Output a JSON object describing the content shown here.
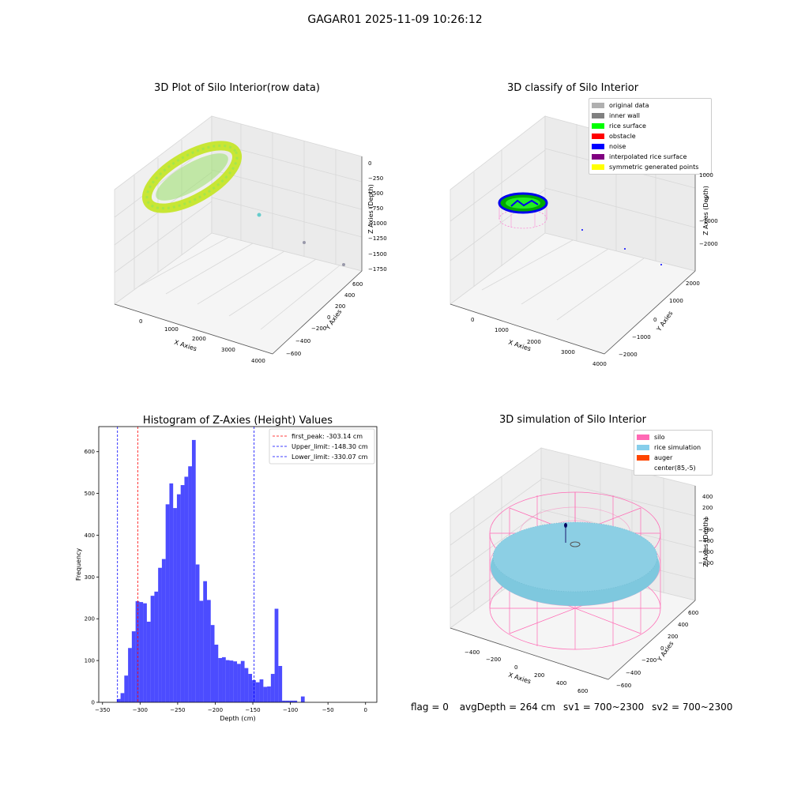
{
  "figure_title": "GAGAR01 2025-11-09 10:26:12",
  "panels": {
    "raw": {
      "title": "3D Plot of Silo Interior(row data)",
      "xlabel": "X Axies",
      "ylabel": "Y Axies",
      "zlabel": "Z Axies (Depth)",
      "xticks": [
        "0",
        "1000",
        "2000",
        "3000",
        "4000"
      ],
      "yticks": [
        "600",
        "400",
        "200",
        "0",
        "−200",
        "−400",
        "−600"
      ],
      "zticks": [
        "0",
        "−250",
        "−500",
        "−750",
        "−1000",
        "−1250",
        "−1500",
        "−1750"
      ]
    },
    "classify": {
      "title": "3D classify of Silo Interior",
      "xlabel": "X Axies",
      "ylabel": "Y Axies",
      "zlabel": "Z Axies (Depth)",
      "xticks": [
        "0",
        "1000",
        "2000",
        "3000",
        "4000"
      ],
      "yticks": [
        "2000",
        "1000",
        "0",
        "−1000",
        "−2000"
      ],
      "zticks": [
        "1000",
        "0",
        "−1000",
        "−2000"
      ],
      "legend": [
        {
          "label": "original data",
          "color": "#b0b0b0"
        },
        {
          "label": "inner wall",
          "color": "#808080"
        },
        {
          "label": "rice surface",
          "color": "#00ff00"
        },
        {
          "label": "obstacle",
          "color": "#ff0000"
        },
        {
          "label": "noise",
          "color": "#0000ff"
        },
        {
          "label": "interpolated rice surface",
          "color": "#800080"
        },
        {
          "label": "symmetric generated points",
          "color": "#ffff00"
        }
      ]
    },
    "simulation": {
      "title": "3D simulation of Silo Interior",
      "xlabel": "X Axies",
      "ylabel": "Y Axies",
      "zlabel": "Z Axies (Depth)",
      "xticks": [
        "−400",
        "−200",
        "0",
        "200",
        "400",
        "600"
      ],
      "yticks": [
        "600",
        "400",
        "200",
        "0",
        "−200",
        "−400",
        "−600"
      ],
      "zticks": [
        "400",
        "200",
        "0",
        "−200",
        "−400",
        "−600",
        "−800"
      ],
      "legend": [
        {
          "label": "silo",
          "color": "#ff69b4"
        },
        {
          "label": "rice simulation",
          "color": "#87ceeb"
        },
        {
          "label": "auger",
          "color": "#ff4500"
        },
        {
          "label": "center(85,-5)",
          "color": ""
        }
      ]
    }
  },
  "footer": {
    "flag": "flag = 0",
    "avg": "avgDepth = 264 cm",
    "sv1": "sv1 = 700~2300",
    "sv2": "sv2 = 700~2300"
  },
  "chart_data": [
    {
      "type": "bar",
      "title": "Histogram of Z-Axies (Height) Values",
      "xlabel": "Depth (cm)",
      "ylabel": "Frequency",
      "xlim": [
        -350,
        0
      ],
      "ylim": [
        0,
        660
      ],
      "xticks": [
        -350,
        -300,
        -250,
        -200,
        -150,
        -100,
        -50,
        0
      ],
      "yticks": [
        0,
        100,
        200,
        300,
        400,
        500,
        600
      ],
      "bar_color": "#0000ff",
      "bins": [
        {
          "x0": -336,
          "x1": -331,
          "value": 8
        },
        {
          "x0": -331,
          "x1": -326,
          "value": 22
        },
        {
          "x0": -326,
          "x1": -321,
          "value": 64
        },
        {
          "x0": -321,
          "x1": -316,
          "value": 130
        },
        {
          "x0": -316,
          "x1": -311,
          "value": 170
        },
        {
          "x0": -311,
          "x1": -306,
          "value": 242
        },
        {
          "x0": -306,
          "x1": -301,
          "value": 240
        },
        {
          "x0": -301,
          "x1": -296,
          "value": 237
        },
        {
          "x0": -296,
          "x1": -291,
          "value": 193
        },
        {
          "x0": -291,
          "x1": -286,
          "value": 255
        },
        {
          "x0": -286,
          "x1": -281,
          "value": 265
        },
        {
          "x0": -281,
          "x1": -276,
          "value": 322
        },
        {
          "x0": -276,
          "x1": -271,
          "value": 343
        },
        {
          "x0": -271,
          "x1": -266,
          "value": 474
        },
        {
          "x0": -266,
          "x1": -261,
          "value": 524
        },
        {
          "x0": -261,
          "x1": -256,
          "value": 465
        },
        {
          "x0": -256,
          "x1": -251,
          "value": 498
        },
        {
          "x0": -251,
          "x1": -246,
          "value": 520
        },
        {
          "x0": -246,
          "x1": -241,
          "value": 540
        },
        {
          "x0": -241,
          "x1": -236,
          "value": 565
        },
        {
          "x0": -236,
          "x1": -231,
          "value": 628
        },
        {
          "x0": -231,
          "x1": -226,
          "value": 330
        },
        {
          "x0": -226,
          "x1": -221,
          "value": 243
        },
        {
          "x0": -221,
          "x1": -216,
          "value": 290
        },
        {
          "x0": -216,
          "x1": -211,
          "value": 245
        },
        {
          "x0": -211,
          "x1": -206,
          "value": 185
        },
        {
          "x0": -206,
          "x1": -201,
          "value": 138
        },
        {
          "x0": -201,
          "x1": -196,
          "value": 106
        },
        {
          "x0": -196,
          "x1": -191,
          "value": 108
        },
        {
          "x0": -191,
          "x1": -186,
          "value": 101
        },
        {
          "x0": -186,
          "x1": -181,
          "value": 100
        },
        {
          "x0": -181,
          "x1": -176,
          "value": 98
        },
        {
          "x0": -176,
          "x1": -171,
          "value": 92
        },
        {
          "x0": -171,
          "x1": -166,
          "value": 99
        },
        {
          "x0": -166,
          "x1": -161,
          "value": 82
        },
        {
          "x0": -161,
          "x1": -156,
          "value": 68
        },
        {
          "x0": -156,
          "x1": -151,
          "value": 53
        },
        {
          "x0": -151,
          "x1": -146,
          "value": 48
        },
        {
          "x0": -146,
          "x1": -141,
          "value": 55
        },
        {
          "x0": -141,
          "x1": -136,
          "value": 37
        },
        {
          "x0": -136,
          "x1": -131,
          "value": 38
        },
        {
          "x0": -131,
          "x1": -126,
          "value": 68
        },
        {
          "x0": -126,
          "x1": -121,
          "value": 224
        },
        {
          "x0": -121,
          "x1": -116,
          "value": 87
        },
        {
          "x0": -116,
          "x1": -111,
          "value": 4
        },
        {
          "x0": -111,
          "x1": -106,
          "value": 4
        },
        {
          "x0": -106,
          "x1": -101,
          "value": 4
        },
        {
          "x0": -101,
          "x1": -96,
          "value": 4
        },
        {
          "x0": -96,
          "x1": -91,
          "value": 0
        },
        {
          "x0": -91,
          "x1": -86,
          "value": 14
        }
      ],
      "vlines": [
        {
          "label": "first_peak: -303.14 cm",
          "x": -303.14,
          "color": "#ff0000"
        },
        {
          "label": "Upper_limit: -148.30 cm",
          "x": -148.3,
          "color": "#0000ff"
        },
        {
          "label": "Lower_limit: -330.07 cm",
          "x": -330.07,
          "color": "#0000ff"
        }
      ],
      "legend_position": "upper right"
    }
  ]
}
